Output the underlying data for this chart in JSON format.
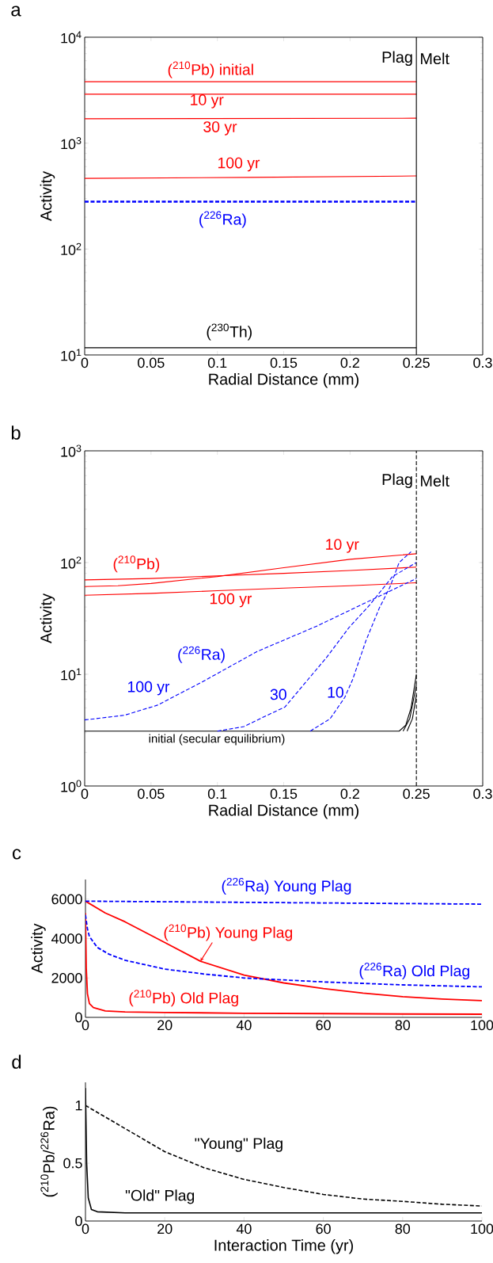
{
  "chart_data": [
    {
      "type": "line",
      "title": "a",
      "xlabel": "Radial Distance (mm)",
      "ylabel": "Activity",
      "log": "y",
      "xlim": [
        0,
        0.3
      ],
      "ylim": [
        10,
        10000
      ],
      "xticks": [
        0,
        0.05,
        0.1,
        0.15,
        0.2,
        0.25,
        0.3
      ],
      "yticks": [
        {
          "value": 10,
          "label": "10$^{1}$"
        },
        {
          "value": 100,
          "label": "10$^{2}$"
        },
        {
          "value": 1000,
          "label": "10$^{3}$"
        },
        {
          "value": 10000,
          "label": "10$^{4}$"
        }
      ],
      "series": [
        {
          "name": "($^{210}$Pb) initial",
          "color": "#ff0000",
          "x": [
            0,
            0.25
          ],
          "values": [
            3800,
            3800
          ]
        },
        {
          "name": "10 yr",
          "color": "#ff0000",
          "x": [
            0,
            0.25
          ],
          "values": [
            2900,
            2900
          ]
        },
        {
          "name": "30 yr",
          "color": "#ff0000",
          "x": [
            0,
            0.25
          ],
          "values": [
            1700,
            1720
          ]
        },
        {
          "name": "100 yr",
          "color": "#ff0000",
          "x": [
            0,
            0.125,
            0.25
          ],
          "values": [
            465,
            475,
            490
          ]
        },
        {
          "name": "($^{226}$Ra)",
          "color": "#0000ff",
          "line_style": "dashed",
          "x": [
            0,
            0.25
          ],
          "values": [
            280,
            280
          ]
        },
        {
          "name": "($^{230}$Th)",
          "color": "#000000",
          "x": [
            0,
            0.25
          ],
          "values": [
            11.7,
            11.7
          ]
        }
      ],
      "ref_lines": [
        {
          "axis": "x",
          "value": 0.25,
          "color": "#000000",
          "line_style": "solid"
        }
      ],
      "annotations": [
        "Plag",
        "Melt"
      ]
    },
    {
      "type": "line",
      "title": "b",
      "xlabel": "Radial Distance (mm)",
      "ylabel": "Activity",
      "log": "y",
      "xlim": [
        0,
        0.3
      ],
      "ylim": [
        1,
        1000
      ],
      "xticks": [
        0,
        0.05,
        0.1,
        0.15,
        0.2,
        0.25,
        0.3
      ],
      "yticks": [
        {
          "value": 1,
          "label": "10$^{0}$"
        },
        {
          "value": 10,
          "label": "10$^{1}$"
        },
        {
          "value": 100,
          "label": "10$^{2}$"
        },
        {
          "value": 1000,
          "label": "10$^{3}$"
        }
      ],
      "series": [
        {
          "name": "10 yr",
          "color": "#ff0000",
          "x": [
            0,
            0.025,
            0.05,
            0.1,
            0.15,
            0.2,
            0.25
          ],
          "values": [
            61,
            62,
            65,
            75,
            90,
            107,
            120
          ]
        },
        {
          "color": "#ff0000",
          "x": [
            0,
            0.05,
            0.1,
            0.15,
            0.2,
            0.25
          ],
          "values": [
            70,
            72,
            76,
            80,
            85,
            91
          ]
        },
        {
          "name": "100 yr",
          "color": "#ff0000",
          "x": [
            0,
            0.05,
            0.1,
            0.15,
            0.2,
            0.25
          ],
          "values": [
            51,
            53,
            56,
            59,
            62,
            66
          ]
        },
        {
          "name": "100 yr",
          "color": "#0000ff",
          "line_style": "dashed",
          "x": [
            0,
            0.03,
            0.055,
            0.089,
            0.13,
            0.175,
            0.222,
            0.25
          ],
          "values": [
            3.9,
            4.3,
            5.3,
            8.6,
            16,
            27,
            50,
            72
          ]
        },
        {
          "name": "30",
          "color": "#0000ff",
          "line_style": "dashed",
          "x": [
            0.1,
            0.12,
            0.134,
            0.151,
            0.167,
            0.182,
            0.199,
            0.215,
            0.232,
            0.25
          ],
          "values": [
            3.1,
            3.4,
            4.1,
            5.1,
            8.6,
            14,
            26,
            42,
            75,
            100
          ]
        },
        {
          "name": "10",
          "color": "#0000ff",
          "line_style": "dashed",
          "x": [
            0.17,
            0.185,
            0.196,
            0.202,
            0.212,
            0.222,
            0.23,
            0.237,
            0.246
          ],
          "values": [
            3.1,
            4,
            6.2,
            9,
            20,
            39,
            60,
            100,
            125
          ]
        },
        {
          "name": "initial (secular equilibrium)",
          "color": "#000000",
          "x": [
            0,
            0.237,
            0.242,
            0.246,
            0.25
          ],
          "values": [
            3.1,
            3.1,
            3.5,
            5,
            10
          ]
        },
        {
          "color": "#000000",
          "x": [
            0.24,
            0.245,
            0.25
          ],
          "values": [
            3.1,
            4,
            8
          ]
        },
        {
          "color": "#000000",
          "x": [
            0.243,
            0.247,
            0.25
          ],
          "values": [
            3.1,
            4,
            6.5
          ]
        }
      ],
      "ref_lines": [
        {
          "axis": "x",
          "value": 0.25,
          "color": "#000000",
          "line_style": "dashed"
        }
      ],
      "annotations": [
        "($^{210}$Pb)",
        "($^{226}$Ra)",
        "Plag",
        "Melt"
      ]
    },
    {
      "type": "line",
      "title": "c",
      "ylabel": "Activity",
      "xlim": [
        0,
        100
      ],
      "ylim": [
        0,
        7000
      ],
      "xticks": [
        0,
        20,
        40,
        60,
        80,
        100
      ],
      "yticks": [
        0,
        2000,
        4000,
        6000
      ],
      "series": [
        {
          "name": "($^{226}$Ra) Young Plag",
          "color": "#0000ff",
          "line_style": "dashed",
          "x": [
            0,
            100
          ],
          "values": [
            5900,
            5750
          ]
        },
        {
          "name": "($^{210}$Pb) Young Plag",
          "color": "#ff0000",
          "x": [
            0,
            5,
            10,
            20,
            29,
            40,
            50,
            60,
            70,
            80,
            90,
            100
          ],
          "values": [
            5900,
            5300,
            4850,
            3800,
            2850,
            2150,
            1750,
            1460,
            1230,
            1050,
            930,
            850
          ]
        },
        {
          "name": "($^{226}$Ra) Old Plag",
          "color": "#0000ff",
          "line_style": "dashed",
          "x": [
            0,
            0.5,
            1,
            3,
            6,
            10,
            20,
            30,
            40,
            60,
            80,
            100
          ],
          "values": [
            5200,
            4500,
            4100,
            3550,
            3200,
            2900,
            2450,
            2200,
            2000,
            1800,
            1650,
            1550
          ]
        },
        {
          "name": "($^{210}$Pb) Old Plag",
          "color": "#ff0000",
          "x": [
            0,
            0.2,
            0.5,
            1,
            2,
            5,
            10,
            20,
            40,
            60,
            80,
            100
          ],
          "values": [
            5300,
            2500,
            1200,
            700,
            500,
            330,
            280,
            250,
            210,
            190,
            170,
            160
          ]
        }
      ]
    },
    {
      "type": "line",
      "title": "d",
      "xlabel": "Interaction Time (yr)",
      "ylabel": "($^{210}$Pb/$^{226}$Ra)",
      "xlim": [
        0,
        100
      ],
      "ylim": [
        0,
        1.2
      ],
      "xticks": [
        0,
        20,
        40,
        60,
        80,
        100
      ],
      "yticks": [
        0,
        0.5,
        1
      ],
      "series": [
        {
          "name": "\"Young\" Plag",
          "color": "#000000",
          "line_style": "dashed",
          "x": [
            0,
            10,
            20,
            30,
            40,
            50,
            60,
            70,
            80,
            90,
            100
          ],
          "values": [
            1,
            0.8,
            0.6,
            0.46,
            0.36,
            0.29,
            0.23,
            0.19,
            0.17,
            0.145,
            0.13
          ]
        },
        {
          "name": "\"Old\" Plag",
          "color": "#000000",
          "x": [
            0,
            0.3,
            0.7,
            1.5,
            3,
            10,
            40,
            100
          ],
          "values": [
            1.15,
            0.5,
            0.2,
            0.1,
            0.08,
            0.07,
            0.07,
            0.07
          ]
        }
      ]
    }
  ]
}
